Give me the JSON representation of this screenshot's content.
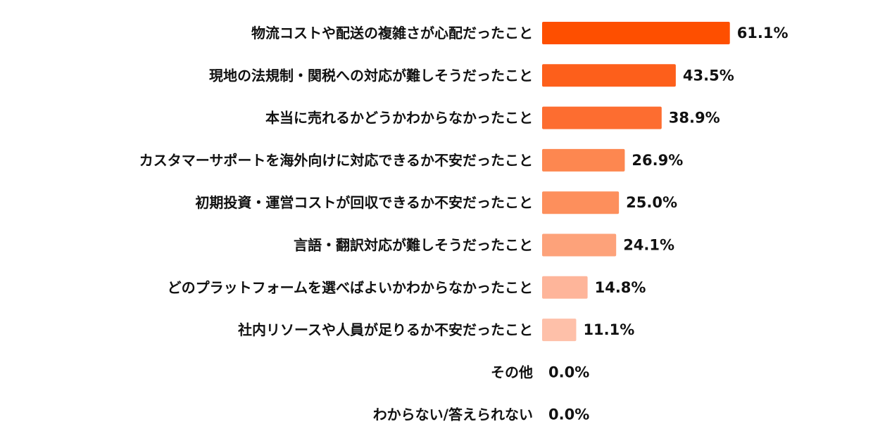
{
  "chart_data": {
    "type": "bar",
    "orientation": "horizontal",
    "categories": [
      "物流コストや配送の複雑さが心配だったこと",
      "現地の法規制・関税への対応が難しそうだったこと",
      "本当に売れるかどうかわからなかったこと",
      "カスタマーサポートを海外向けに対応できるか不安だったこと",
      "初期投資・運営コストが回収できるか不安だったこと",
      "言語・翻訳対応が難しそうだったこと",
      "どのプラットフォームを選べばよいかわからなかったこと",
      "社内リソースや人員が足りるか不安だったこと",
      "その他",
      "わからない/答えられない"
    ],
    "values": [
      61.1,
      43.5,
      38.9,
      26.9,
      25.0,
      24.1,
      14.8,
      11.1,
      0.0,
      0.0
    ],
    "value_labels": [
      "61.1%",
      "43.5%",
      "38.9%",
      "26.9%",
      "25.0%",
      "24.1%",
      "14.8%",
      "11.1%",
      "0.0%",
      "0.0%"
    ],
    "bar_colors": [
      "#fe4f00",
      "#fd5f1b",
      "#fd6d30",
      "#fd8750",
      "#fd8f5c",
      "#fda27a",
      "#feb59a",
      "#fec0a9",
      "#fec0a9",
      "#fec0a9"
    ],
    "xlim": [
      0,
      65
    ],
    "title": "",
    "xlabel": "",
    "ylabel": "",
    "grid": false,
    "legend": "none"
  }
}
